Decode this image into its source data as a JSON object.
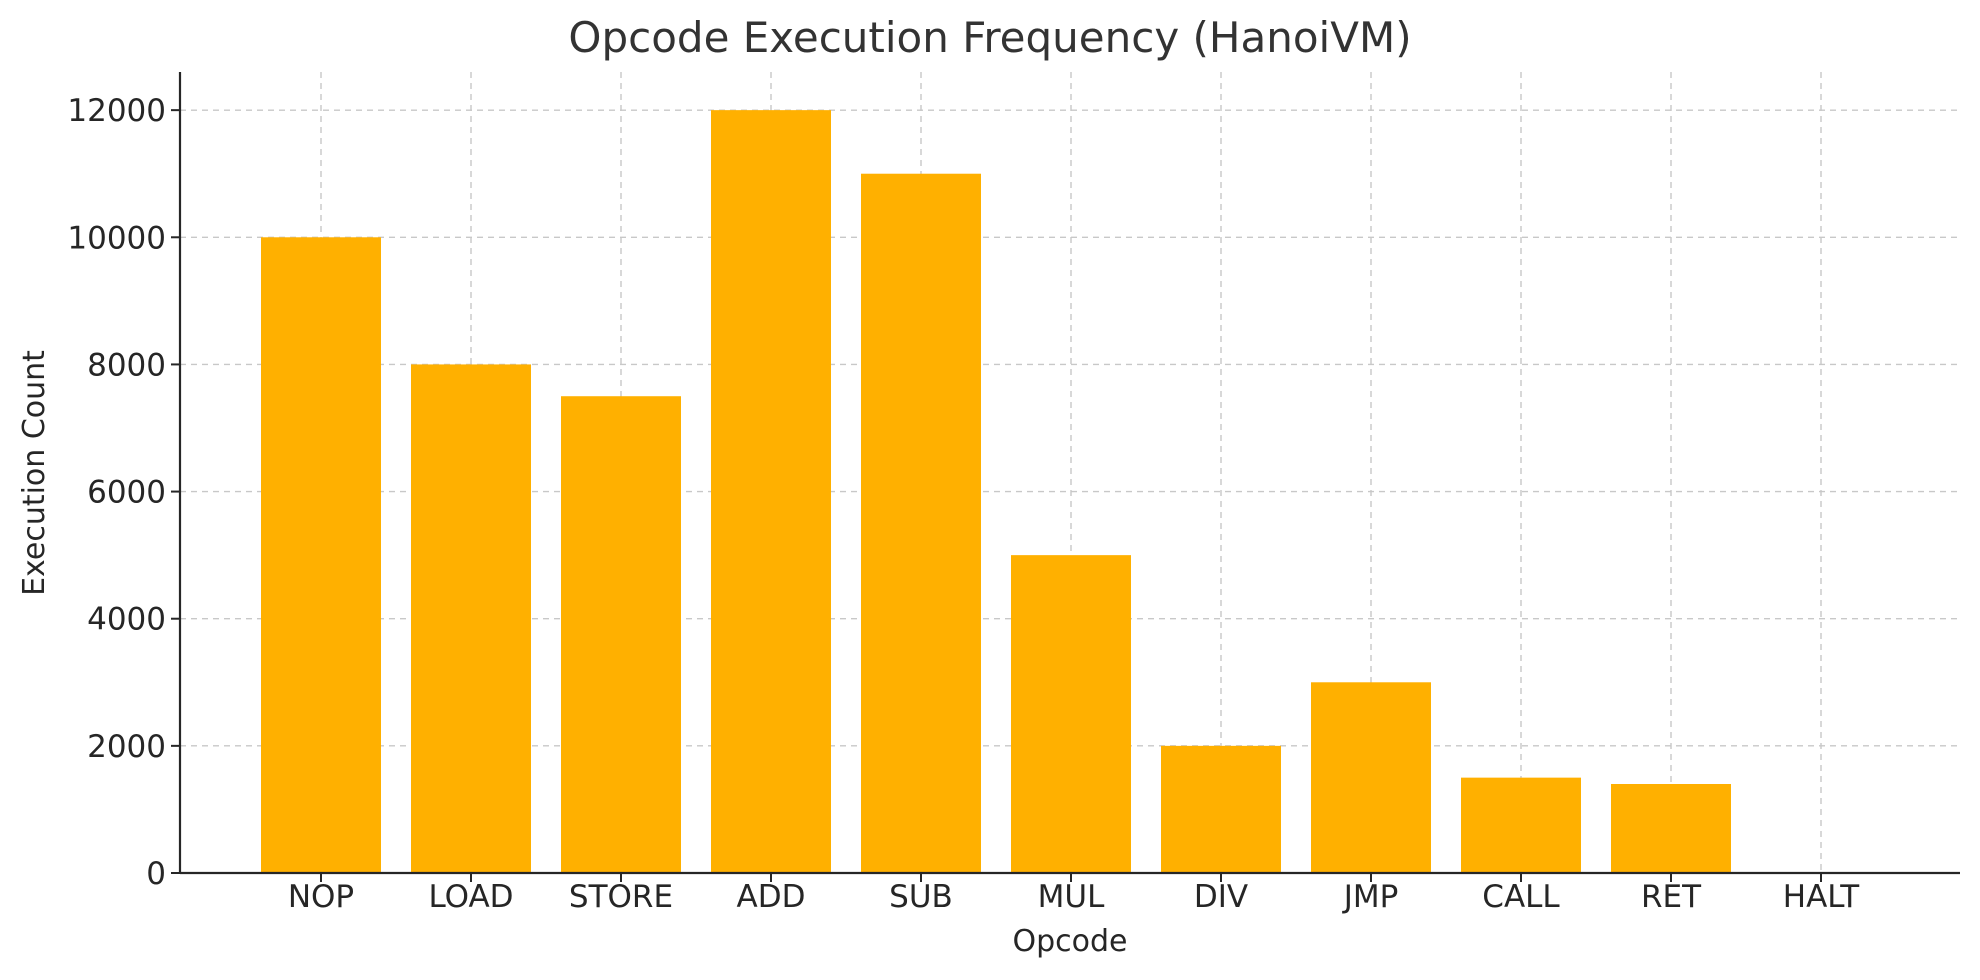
{
  "chart_data": {
    "type": "bar",
    "title": "Opcode Execution Frequency (HanoiVM)",
    "xlabel": "Opcode",
    "ylabel": "Execution Count",
    "categories": [
      "NOP",
      "LOAD",
      "STORE",
      "ADD",
      "SUB",
      "MUL",
      "DIV",
      "JMP",
      "CALL",
      "RET",
      "HALT"
    ],
    "values": [
      10000,
      8000,
      7500,
      12000,
      11000,
      5000,
      2000,
      3000,
      1500,
      1400,
      0
    ],
    "ylim": [
      0,
      12600
    ],
    "yticks": [
      0,
      2000,
      4000,
      6000,
      8000,
      10000,
      12000
    ],
    "grid": true,
    "legend": "none",
    "bar_color": "#ffb000"
  }
}
